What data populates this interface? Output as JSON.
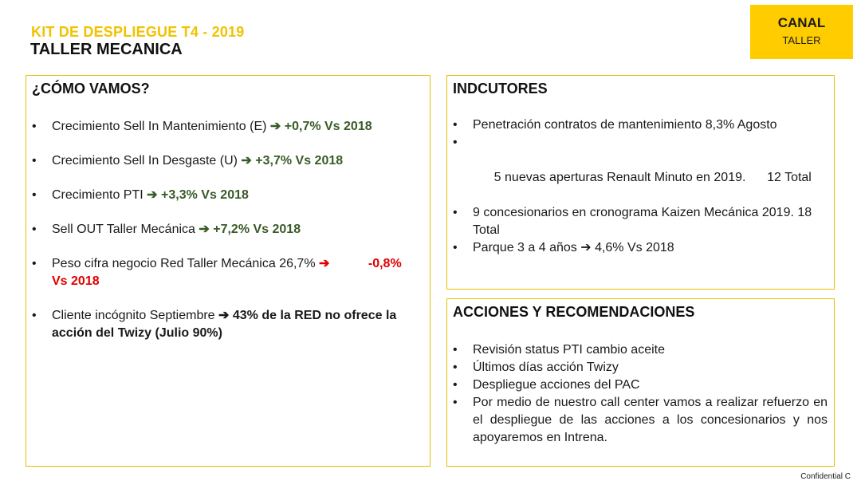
{
  "header": {
    "kicker": "KIT DE DESPLIEGUE T4 - 2019",
    "title": "TALLER MECANICA"
  },
  "canal": {
    "label": "CANAL",
    "value": "TALLER"
  },
  "left_panel": {
    "title": "¿CÓMO VAMOS?",
    "items": [
      {
        "text": "Crecimiento Sell In Mantenimiento (E)",
        "arrow": "➔",
        "result": "+0,7%  Vs 2018"
      },
      {
        "text": "Crecimiento Sell In Desgaste (U)",
        "arrow": "➔",
        "result": "+3,7% Vs 2018"
      },
      {
        "text": "Crecimiento PTI",
        "arrow": "➔",
        "result": "+3,3% Vs 2018"
      },
      {
        "text": "Sell OUT Taller Mecánica",
        "arrow": "➔",
        "result": "+7,2% Vs 2018"
      },
      {
        "text": "Peso cifra negocio Red Taller Mecánica 26,7%",
        "arrow": "➔",
        "result_a": "-0,8%",
        "result_b": "Vs 2018"
      },
      {
        "text": "Cliente incógnito Septiembre",
        "arrow": "➔",
        "result": "43% de la RED no ofrece la acción del Twizy (Julio 90%)"
      }
    ]
  },
  "indicators_panel": {
    "title": "INDCUTORES",
    "items": [
      "Penetración contratos de mantenimiento 8,3% Agosto",
      "5 nuevas aperturas Renault Minuto en 2019.      12 Total",
      "9 concesionarios en cronograma Kaizen Mecánica 2019. 18 Total",
      "Parque 3 a 4 años ➔ 4,6% Vs 2018"
    ]
  },
  "actions_panel": {
    "title": "ACCIONES Y RECOMENDACIONES",
    "items": [
      "Revisión status PTI cambio aceite",
      "Últimos días acción Twizy",
      "Despliegue acciones del PAC",
      "Por medio de nuestro call center vamos a realizar refuerzo en el despliegue de las acciones a los concesionarios y nos apoyaremos en Intrena."
    ]
  },
  "bullet": "•",
  "footer": {
    "confidential": "Confidential C"
  },
  "colors": {
    "accent_yellow": "#ffcc00",
    "kicker_yellow": "#f2c200",
    "positive_green": "#3a5a28",
    "negative_red": "#e00000"
  }
}
